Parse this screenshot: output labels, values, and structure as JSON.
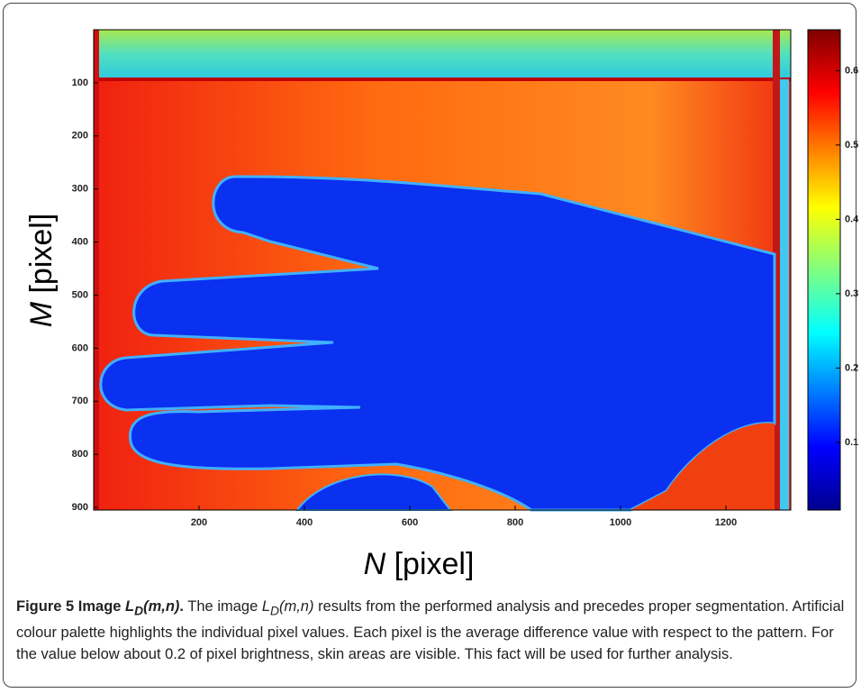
{
  "figure": {
    "x_label": {
      "symbol": "N",
      "unit": "[pixel]"
    },
    "y_label": {
      "symbol": "M",
      "unit": "[pixel]"
    },
    "xlim": [
      0,
      1323
    ],
    "xticks": [
      200,
      400,
      600,
      800,
      1000,
      1200
    ],
    "ylim": [
      0,
      905
    ],
    "yticks": [
      100,
      200,
      300,
      400,
      500,
      600,
      700,
      800,
      900
    ],
    "colorbar_lim": [
      0.009,
      0.655
    ],
    "colorbar_ticks": [
      0.1,
      0.2,
      0.3,
      0.4,
      0.5,
      0.6
    ],
    "caption": {
      "label": "Figure 5 Image",
      "title_symbol": "L",
      "title_sub": "D",
      "title_args": "(m,n)",
      "title_end": ".",
      "text_start": "The image",
      "text_symbol": "L",
      "text_sub": "D",
      "text_args": "(m,n)",
      "text_rest": "results from the performed analysis and precedes proper segmentation. Artificial colour palette highlights the individual pixel values. Each pixel is the average difference value with respect to the pattern. For the value below about 0.2 of pixel brightness, skin areas are visible. This fact will be used for further analysis."
    }
  }
}
